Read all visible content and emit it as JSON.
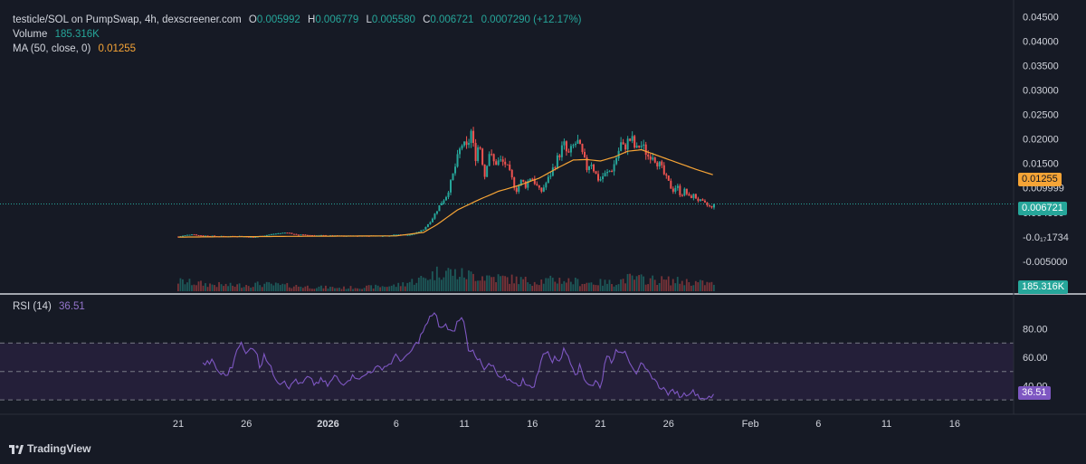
{
  "legend": {
    "pair": "testicle/SOL on PumpSwap, 4h, dexscreener.com",
    "open_key": "O",
    "open": "0.005992",
    "high_key": "H",
    "high": "0.006779",
    "low_key": "L",
    "low": "0.005580",
    "close_key": "C",
    "close": "0.006721",
    "change": "0.0007290 (+12.17%)",
    "volume_label": "Volume",
    "volume": "185.316K",
    "ma_label": "MA (50, close, 0)",
    "ma": "0.01255"
  },
  "rsi_legend": {
    "label": "RSI (14)",
    "value": "36.51"
  },
  "brand": "TradingView",
  "colors": {
    "bg": "#161a25",
    "up": "#26a69a",
    "down": "#ef5350",
    "ma": "#f6a436",
    "rsi": "#7e57c2",
    "rsi_band": "#2a2240",
    "text": "#d1d4dc",
    "grid": "#2a2e39"
  },
  "chart_data": [
    {
      "type": "candlestick",
      "title": "testicle/SOL on PumpSwap, 4h, dexscreener.com",
      "x_tick_labels": [
        "21",
        "26",
        "2026",
        "6",
        "11",
        "16",
        "21",
        "26",
        "Feb",
        "6",
        "11",
        "16"
      ],
      "x_ticks_days": [
        0,
        5,
        11,
        16,
        21,
        26,
        31,
        36,
        42,
        47,
        52,
        57
      ],
      "y_tick_labels": [
        "0.04500",
        "0.04000",
        "0.03500",
        "0.03000",
        "0.02500",
        "0.02000",
        "0.01500",
        "0.009999",
        "0.004999",
        "-0.0₁₇1734",
        "-0.005000"
      ],
      "y_tick_values": [
        0.045,
        0.04,
        0.035,
        0.03,
        0.025,
        0.02,
        0.015,
        0.01,
        0.005,
        0,
        -0.005
      ],
      "ylim": [
        -0.0065,
        0.046
      ],
      "price_tags": [
        {
          "label": "0.01255",
          "value": 0.01255,
          "color": "#f6a436"
        },
        {
          "label": "0.006721",
          "value": 0.006721,
          "color": "#26a69a"
        }
      ],
      "last": {
        "open": 0.005992,
        "high": 0.006779,
        "low": 0.00558,
        "close": 0.006721
      },
      "close_anchors": [
        [
          0.0,
          5e-05
        ],
        [
          1.0,
          0.00055
        ],
        [
          1.5,
          0.0003
        ],
        [
          3.0,
          0.0001
        ],
        [
          4.5,
          0.00015
        ],
        [
          5.5,
          -0.0001
        ],
        [
          7.0,
          0.0006
        ],
        [
          8.0,
          0.0009
        ],
        [
          8.5,
          0.0005
        ],
        [
          10.0,
          0.0003
        ],
        [
          12.0,
          0.0002
        ],
        [
          14.0,
          0.0002
        ],
        [
          15.5,
          0.00025
        ],
        [
          16.0,
          0.00045
        ],
        [
          17.0,
          0.0004
        ],
        [
          17.3,
          0.0006
        ],
        [
          18.0,
          0.0015
        ],
        [
          18.6,
          0.0035
        ],
        [
          19.2,
          0.0065
        ],
        [
          19.7,
          0.0085
        ],
        [
          20.0,
          0.011
        ],
        [
          20.4,
          0.015
        ],
        [
          20.8,
          0.019
        ],
        [
          21.2,
          0.018
        ],
        [
          21.5,
          0.0215
        ],
        [
          21.8,
          0.016
        ],
        [
          22.1,
          0.0195
        ],
        [
          22.5,
          0.0125
        ],
        [
          22.8,
          0.0175
        ],
        [
          23.2,
          0.015
        ],
        [
          23.6,
          0.0155
        ],
        [
          24.0,
          0.015
        ],
        [
          24.4,
          0.0125
        ],
        [
          24.8,
          0.0095
        ],
        [
          25.2,
          0.0115
        ],
        [
          25.5,
          0.0105
        ],
        [
          25.9,
          0.0125
        ],
        [
          26.3,
          0.0105
        ],
        [
          26.6,
          0.009
        ],
        [
          26.9,
          0.0105
        ],
        [
          27.2,
          0.012
        ],
        [
          27.6,
          0.0145
        ],
        [
          28.0,
          0.017
        ],
        [
          28.3,
          0.019
        ],
        [
          28.6,
          0.0165
        ],
        [
          29.0,
          0.0185
        ],
        [
          29.3,
          0.0195
        ],
        [
          29.7,
          0.0165
        ],
        [
          30.0,
          0.014
        ],
        [
          30.3,
          0.0155
        ],
        [
          30.6,
          0.013
        ],
        [
          30.9,
          0.0115
        ],
        [
          31.2,
          0.0125
        ],
        [
          31.5,
          0.013
        ],
        [
          31.9,
          0.014
        ],
        [
          32.2,
          0.0165
        ],
        [
          32.5,
          0.019
        ],
        [
          32.7,
          0.018
        ],
        [
          33.0,
          0.0195
        ],
        [
          33.3,
          0.02
        ],
        [
          33.6,
          0.0175
        ],
        [
          33.9,
          0.019
        ],
        [
          34.2,
          0.018
        ],
        [
          34.5,
          0.0165
        ],
        [
          34.8,
          0.017
        ],
        [
          35.1,
          0.0155
        ],
        [
          35.4,
          0.0145
        ],
        [
          35.7,
          0.0125
        ],
        [
          36.0,
          0.011
        ],
        [
          36.3,
          0.0095
        ],
        [
          36.6,
          0.0105
        ],
        [
          36.9,
          0.0085
        ],
        [
          37.2,
          0.0095
        ],
        [
          37.5,
          0.008
        ],
        [
          37.8,
          0.0085
        ],
        [
          38.2,
          0.0075
        ],
        [
          38.6,
          0.0068
        ],
        [
          39.0,
          0.0062
        ],
        [
          39.3,
          0.0056
        ],
        [
          39.4,
          0.00672
        ]
      ],
      "volume_profile": [
        [
          0,
          0.35
        ],
        [
          2,
          0.25
        ],
        [
          4,
          0.2
        ],
        [
          6,
          0.25
        ],
        [
          8,
          0.2
        ],
        [
          10,
          0.15
        ],
        [
          12,
          0.12
        ],
        [
          14,
          0.15
        ],
        [
          16,
          0.2
        ],
        [
          18,
          0.45
        ],
        [
          19.5,
          0.75
        ],
        [
          20.5,
          0.6
        ],
        [
          22,
          0.55
        ],
        [
          24,
          0.45
        ],
        [
          26,
          0.35
        ],
        [
          28,
          0.4
        ],
        [
          30,
          0.3
        ],
        [
          32,
          0.3
        ],
        [
          33,
          0.45
        ],
        [
          35,
          0.4
        ],
        [
          37,
          0.35
        ],
        [
          39.4,
          0.25
        ]
      ],
      "volume_ylim": [
        0,
        1
      ]
    },
    {
      "type": "line",
      "name": "MA (50, close, 0)",
      "last": 0.01255,
      "anchors": [
        [
          0.0,
          -5e-05
        ],
        [
          8.5,
          0.0001
        ],
        [
          12.0,
          0.00015
        ],
        [
          16.0,
          0.0002
        ],
        [
          18.0,
          0.0009
        ],
        [
          19.0,
          0.0025
        ],
        [
          20.5,
          0.0055
        ],
        [
          22.0,
          0.0075
        ],
        [
          23.5,
          0.0093
        ],
        [
          25.0,
          0.0105
        ],
        [
          26.5,
          0.012
        ],
        [
          28.0,
          0.0143
        ],
        [
          29.0,
          0.0157
        ],
        [
          30.0,
          0.0158
        ],
        [
          31.0,
          0.0155
        ],
        [
          32.0,
          0.0163
        ],
        [
          33.0,
          0.0175
        ],
        [
          34.0,
          0.0178
        ],
        [
          35.0,
          0.0168
        ],
        [
          36.5,
          0.0153
        ],
        [
          38.0,
          0.0138
        ],
        [
          39.4,
          0.01255
        ]
      ]
    },
    {
      "type": "line",
      "name": "RSI (14)",
      "last": 36.51,
      "y_tick_labels": [
        "80.00",
        "60.00",
        "40.00"
      ],
      "y_tick_values": [
        80,
        60,
        40
      ],
      "bands": [
        30,
        50,
        70
      ],
      "ylim": [
        25,
        95
      ],
      "anchors": [
        [
          1.8,
          55
        ],
        [
          2.5,
          57
        ],
        [
          3.0,
          49
        ],
        [
          3.5,
          47
        ],
        [
          4.0,
          54
        ],
        [
          4.3,
          67
        ],
        [
          4.6,
          70
        ],
        [
          5.0,
          61
        ],
        [
          5.3,
          68
        ],
        [
          5.7,
          65
        ],
        [
          6.0,
          52
        ],
        [
          6.3,
          63
        ],
        [
          6.6,
          56
        ],
        [
          7.0,
          48
        ],
        [
          7.4,
          42
        ],
        [
          7.8,
          44
        ],
        [
          8.2,
          38
        ],
        [
          8.6,
          45
        ],
        [
          9.0,
          40
        ],
        [
          9.5,
          46
        ],
        [
          10.0,
          41
        ],
        [
          10.5,
          44
        ],
        [
          11.0,
          40
        ],
        [
          11.5,
          47
        ],
        [
          12.0,
          41
        ],
        [
          12.5,
          45
        ],
        [
          13.0,
          47
        ],
        [
          13.5,
          45
        ],
        [
          14.0,
          50
        ],
        [
          14.5,
          52
        ],
        [
          15.0,
          53
        ],
        [
          15.5,
          55
        ],
        [
          16.0,
          61
        ],
        [
          16.4,
          58
        ],
        [
          16.8,
          60
        ],
        [
          17.2,
          66
        ],
        [
          17.6,
          71
        ],
        [
          17.9,
          77
        ],
        [
          18.3,
          84
        ],
        [
          18.6,
          90
        ],
        [
          18.9,
          92
        ],
        [
          19.2,
          77
        ],
        [
          19.5,
          84
        ],
        [
          19.8,
          80
        ],
        [
          20.2,
          77
        ],
        [
          20.6,
          88
        ],
        [
          20.9,
          86
        ],
        [
          21.1,
          80
        ],
        [
          21.3,
          64
        ],
        [
          21.6,
          67
        ],
        [
          21.9,
          60
        ],
        [
          22.2,
          56
        ],
        [
          22.5,
          50
        ],
        [
          22.8,
          55
        ],
        [
          23.2,
          52
        ],
        [
          23.6,
          44
        ],
        [
          24.0,
          46
        ],
        [
          24.3,
          44
        ],
        [
          24.6,
          44
        ],
        [
          25.0,
          38
        ],
        [
          25.3,
          46
        ],
        [
          25.6,
          40
        ],
        [
          25.9,
          38
        ],
        [
          26.2,
          42
        ],
        [
          26.5,
          52
        ],
        [
          26.8,
          62
        ],
        [
          27.1,
          66
        ],
        [
          27.4,
          56
        ],
        [
          27.7,
          60
        ],
        [
          28.0,
          58
        ],
        [
          28.3,
          65
        ],
        [
          28.6,
          62
        ],
        [
          28.9,
          55
        ],
        [
          29.2,
          48
        ],
        [
          29.5,
          54
        ],
        [
          29.8,
          45
        ],
        [
          30.1,
          42
        ],
        [
          30.4,
          40
        ],
        [
          30.7,
          44
        ],
        [
          31.0,
          37
        ],
        [
          31.3,
          56
        ],
        [
          31.6,
          63
        ],
        [
          31.9,
          55
        ],
        [
          32.2,
          66
        ],
        [
          32.5,
          63
        ],
        [
          32.8,
          66
        ],
        [
          33.1,
          58
        ],
        [
          33.4,
          53
        ],
        [
          33.7,
          48
        ],
        [
          34.0,
          55
        ],
        [
          34.3,
          51
        ],
        [
          34.6,
          48
        ],
        [
          34.9,
          46
        ],
        [
          35.2,
          40
        ],
        [
          35.5,
          39
        ],
        [
          35.8,
          36
        ],
        [
          36.1,
          34
        ],
        [
          36.4,
          37
        ],
        [
          36.8,
          33
        ],
        [
          37.2,
          34
        ],
        [
          37.6,
          36
        ],
        [
          38.0,
          35
        ],
        [
          38.4,
          31
        ],
        [
          38.8,
          32
        ],
        [
          39.1,
          30
        ],
        [
          39.4,
          36.51
        ]
      ]
    },
    {
      "type": "bar",
      "name": "Volume",
      "last": "185.316K"
    }
  ]
}
